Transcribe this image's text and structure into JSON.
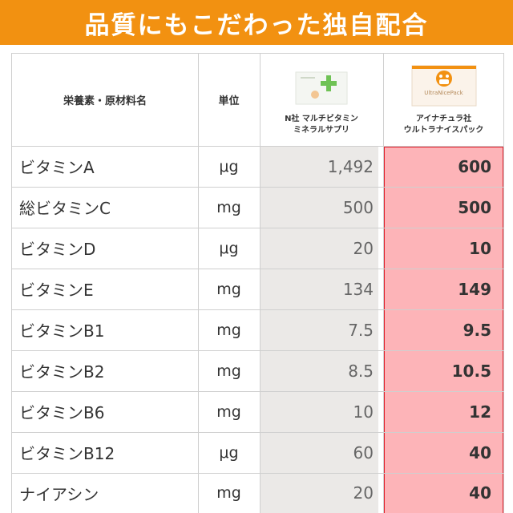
{
  "banner": {
    "title": "品質にもこだわった独自配合"
  },
  "header": {
    "nutrient": "栄養素・原材料名",
    "unit": "単位",
    "product_a": {
      "line1": "N社 マルチビタミン",
      "line2": "ミネラルサプリ"
    },
    "product_b": {
      "line1": "アイナチュラ社",
      "line2": "ウルトラナイスパック",
      "package_text": "UltraNicePack"
    }
  },
  "rows": [
    {
      "name": "ビタミンA",
      "unit": "μg",
      "a": "1,492",
      "b": "600"
    },
    {
      "name": "総ビタミンC",
      "unit": "mg",
      "a": "500",
      "b": "500"
    },
    {
      "name": "ビタミンD",
      "unit": "μg",
      "a": "20",
      "b": "10"
    },
    {
      "name": "ビタミンE",
      "unit": "mg",
      "a": "134",
      "b": "149"
    },
    {
      "name": "ビタミンB1",
      "unit": "mg",
      "a": "7.5",
      "b": "9.5"
    },
    {
      "name": "ビタミンB2",
      "unit": "mg",
      "a": "8.5",
      "b": "10.5"
    },
    {
      "name": "ビタミンB6",
      "unit": "mg",
      "a": "10",
      "b": "12"
    },
    {
      "name": "ビタミンB12",
      "unit": "μg",
      "a": "60",
      "b": "40"
    },
    {
      "name": "ナイアシン",
      "unit": "mg",
      "a": "20",
      "b": "40"
    }
  ],
  "colors": {
    "banner": "#f29111",
    "highlight_fill": "#fdb4b8",
    "highlight_border": "#e0202c",
    "gray_col": "#ebe9e7"
  }
}
